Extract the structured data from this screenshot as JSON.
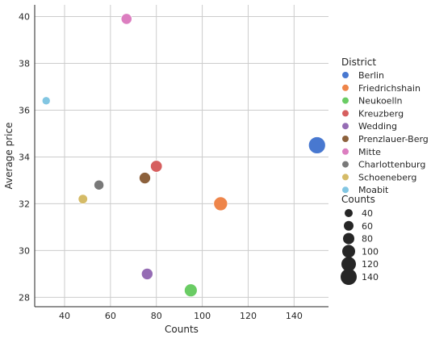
{
  "chart_data": {
    "type": "scatter",
    "title": "",
    "xlabel": "Counts",
    "ylabel": "Average price",
    "xlim": [
      27,
      155
    ],
    "ylim": [
      27.6,
      40.5
    ],
    "xticks": [
      40,
      60,
      80,
      100,
      120,
      140
    ],
    "yticks": [
      28,
      30,
      32,
      34,
      36,
      38,
      40
    ],
    "grid": true,
    "legend_position": "right",
    "hue_legend_title": "District",
    "size_legend_title": "Counts",
    "size_legend_values": [
      40,
      60,
      80,
      100,
      120,
      140
    ],
    "points": [
      {
        "name": "Berlin",
        "x": 150,
        "y": 34.5,
        "color": "#4878d0"
      },
      {
        "name": "Friedrichshain",
        "x": 108,
        "y": 32.0,
        "color": "#ee854a"
      },
      {
        "name": "Neukoelln",
        "x": 95,
        "y": 28.3,
        "color": "#6acc64"
      },
      {
        "name": "Kreuzberg",
        "x": 80,
        "y": 33.6,
        "color": "#d65f5f"
      },
      {
        "name": "Wedding",
        "x": 76,
        "y": 29.0,
        "color": "#956cb4"
      },
      {
        "name": "Prenzlauer-Berg",
        "x": 75,
        "y": 33.1,
        "color": "#8c613c"
      },
      {
        "name": "Mitte",
        "x": 67,
        "y": 39.9,
        "color": "#dc7ec0"
      },
      {
        "name": "Charlottenburg",
        "x": 55,
        "y": 32.8,
        "color": "#797979"
      },
      {
        "name": "Schoeneberg",
        "x": 48,
        "y": 32.2,
        "color": "#d5bb67"
      },
      {
        "name": "Moabit",
        "x": 32,
        "y": 36.4,
        "color": "#82c6e2"
      }
    ]
  }
}
